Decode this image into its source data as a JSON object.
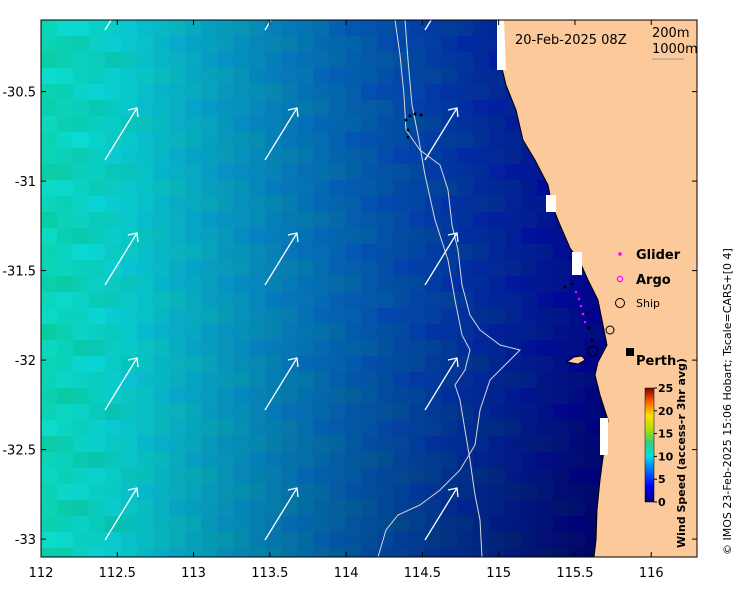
{
  "title_date": "20-Feb-2025 08Z",
  "contours": {
    "label_a": "200m",
    "label_b": "1000m"
  },
  "x_axis": {
    "ticks": [
      112,
      112.5,
      113,
      113.5,
      114,
      114.5,
      115,
      115.5,
      116
    ],
    "tick_labels": [
      "112",
      "112.5",
      "113",
      "113.5",
      "114",
      "114.5",
      "115",
      "115.5",
      "116"
    ],
    "range": [
      112,
      116.3
    ]
  },
  "y_axis": {
    "ticks": [
      -30.5,
      -31,
      -31.5,
      -32,
      -32.5,
      -33
    ],
    "tick_labels": [
      "-30.5",
      "-31",
      "-31.5",
      "-32",
      "-32.5",
      "-33"
    ],
    "range": [
      -33.1,
      -30.1
    ]
  },
  "legend": {
    "glider": "Glider",
    "argo": "Argo",
    "ship": "Ship"
  },
  "place": {
    "name": "Perth"
  },
  "colorbar": {
    "title": "Wind Speed (access-r 3hr avg)",
    "ticks": [
      "0",
      "5",
      "10",
      "15",
      "20",
      "25"
    ],
    "min": 0,
    "max": 25
  },
  "credit": "© IMOS 23-Feb-2025 15:06 Hobart; Tscale=CARS+[0 4]",
  "colors": {
    "land": "#fcc99b",
    "arrow": "#ffffff",
    "contour": "#d8d8d8",
    "glider": "#ff00ff"
  }
}
